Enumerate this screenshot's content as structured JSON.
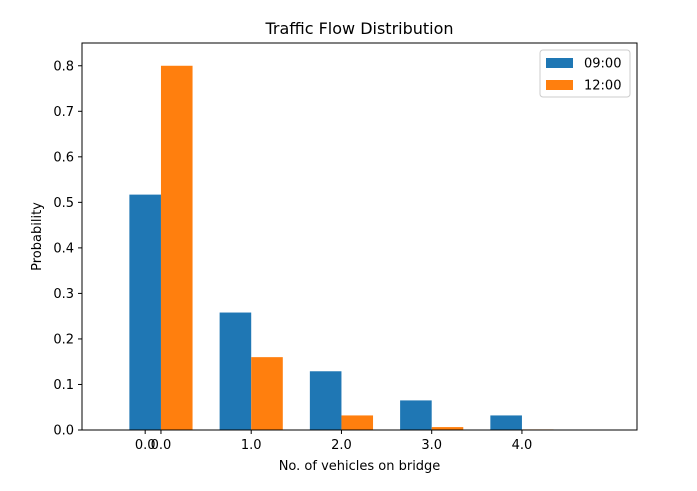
{
  "chart_data": {
    "type": "bar",
    "title": "Traffic Flow Distribution",
    "xlabel": "No. of vehicles on bridge",
    "ylabel": "Probability",
    "categories": [
      "0.0",
      "1.0",
      "2.0",
      "3.0",
      "4.0"
    ],
    "x": [
      0,
      1,
      2,
      3,
      4
    ],
    "series": [
      {
        "name": "09:00",
        "color": "#1f77b4",
        "values": [
          0.517,
          0.258,
          0.129,
          0.065,
          0.032
        ]
      },
      {
        "name": "12:00",
        "color": "#ff7f0e",
        "values": [
          0.8,
          0.16,
          0.032,
          0.0064,
          0.0013
        ]
      }
    ],
    "ylim": [
      0,
      0.85
    ],
    "xlim": [
      -0.7,
      5.45
    ],
    "yticks": [
      "0.0",
      "0.1",
      "0.2",
      "0.3",
      "0.4",
      "0.5",
      "0.6",
      "0.7",
      "0.8"
    ],
    "xticks": [
      "0.0",
      "0.0",
      "1.0",
      "2.0",
      "3.0",
      "4.0"
    ],
    "legend_position": "top-right",
    "grid": false
  }
}
